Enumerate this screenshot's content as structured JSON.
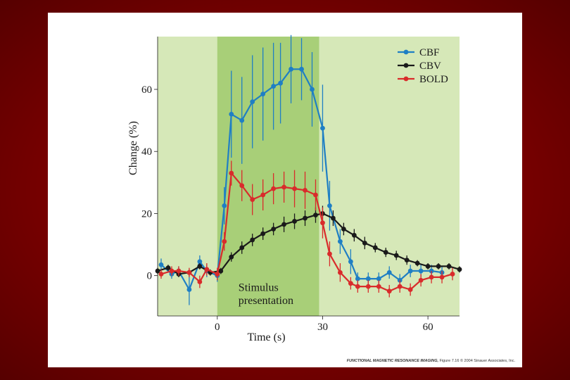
{
  "chart_data": {
    "type": "line",
    "xlabel": "Time (s)",
    "ylabel": "Change (%)",
    "xlim": [
      -17,
      69
    ],
    "ylim": [
      -13,
      77
    ],
    "xticks": [
      0,
      30,
      60
    ],
    "xtick_labels": [
      "0",
      "30",
      "60"
    ],
    "yticks": [
      0,
      20,
      40,
      60
    ],
    "ytick_labels": [
      "0",
      "20",
      "40",
      "60"
    ],
    "stimulus": {
      "start": 0,
      "end": 29,
      "label_line1": "Stimulus",
      "label_line2": "presentation"
    },
    "legend_position": "top-right",
    "series": [
      {
        "name": "CBF",
        "color": "#1f7fc4",
        "x": [
          -16,
          -13,
          -11,
          -8,
          -5,
          -3,
          0,
          2,
          4,
          7,
          10,
          13,
          16,
          18,
          21,
          24,
          27,
          30,
          32,
          35,
          38,
          40,
          43,
          46,
          49,
          52,
          55,
          58,
          61,
          64
        ],
        "y": [
          3.5,
          0.5,
          1.5,
          -4.5,
          4.5,
          1.5,
          0,
          22.5,
          52,
          50,
          56,
          58.5,
          61,
          62,
          66.5,
          66.5,
          60,
          47.5,
          22.5,
          11,
          4.5,
          -1,
          -1,
          -1,
          1,
          -1.5,
          1.5,
          1.5,
          1.5,
          1
        ],
        "err": [
          2,
          1.5,
          1.5,
          5,
          2,
          2,
          2,
          6,
          14,
          14,
          15,
          15,
          14,
          13,
          11,
          10,
          12,
          14,
          8,
          4,
          4,
          2,
          2,
          2,
          2,
          2,
          2,
          2,
          2,
          2
        ]
      },
      {
        "name": "CBV",
        "color": "#1a1a1a",
        "x": [
          -17,
          -14,
          -11,
          -8,
          -5,
          -2,
          1,
          4,
          7,
          10,
          13,
          16,
          19,
          22,
          25,
          28,
          30,
          33,
          36,
          39,
          42,
          45,
          48,
          51,
          54,
          57,
          60,
          63,
          66,
          69
        ],
        "y": [
          1.5,
          2.5,
          0.5,
          1,
          3,
          1,
          1.5,
          6,
          9,
          11.5,
          13.5,
          15,
          16.5,
          17.5,
          18.5,
          19.5,
          20,
          18.5,
          15,
          13,
          10.5,
          9,
          7.5,
          6.5,
          5,
          4,
          3,
          3,
          3,
          2
        ],
        "err": [
          1,
          1,
          1,
          1,
          1,
          1,
          1,
          1.5,
          2,
          2,
          2,
          2,
          2.5,
          2.5,
          2.5,
          2.5,
          2.5,
          2.5,
          2,
          2,
          2,
          1.5,
          1.5,
          1.5,
          1.5,
          1,
          1,
          1,
          1,
          1
        ]
      },
      {
        "name": "BOLD",
        "color": "#d92b2b",
        "x": [
          -16,
          -13,
          -11,
          -8,
          -5,
          -3,
          0,
          2,
          4,
          7,
          10,
          13,
          16,
          19,
          22,
          25,
          28,
          30,
          32,
          35,
          38,
          40,
          43,
          46,
          49,
          52,
          55,
          58,
          61,
          64,
          67
        ],
        "y": [
          0.5,
          1.5,
          1.5,
          1,
          -2,
          2,
          0.5,
          11,
          33,
          29,
          24.5,
          26,
          28,
          28.5,
          28,
          27.5,
          26,
          17,
          7,
          1,
          -2.5,
          -3.5,
          -3.5,
          -3.5,
          -5,
          -3.5,
          -4.5,
          -1.5,
          -0.5,
          -0.5,
          0.5
        ],
        "err": [
          1.5,
          1.5,
          1.5,
          1.5,
          2,
          2,
          2,
          3,
          4,
          5,
          5,
          5,
          5,
          5,
          6,
          6,
          5,
          5,
          4,
          3,
          2,
          2,
          2,
          2,
          2,
          2,
          2,
          2,
          2,
          2,
          2
        ]
      }
    ]
  },
  "credit": {
    "title": "FUNCTIONAL MAGNETIC RESONANCE IMAGING,",
    "figure": "Figure 7.16",
    "copyright": "© 2004 Sinauer Associates, Inc."
  }
}
